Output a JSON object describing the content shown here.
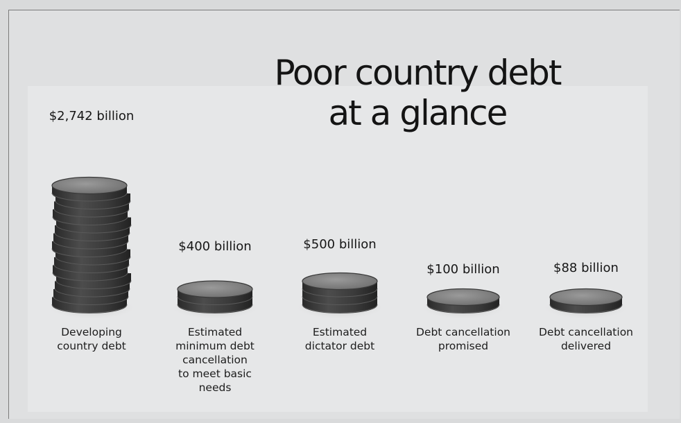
{
  "chart_data": {
    "type": "bar",
    "title": "Poor country debt at a glance",
    "unit": "billion",
    "categories": [
      "Developing country debt",
      "Estimated minimum debt cancellation to meet basic needs",
      "Estimated dictator debt",
      "Debt cancellation promised",
      "Debt cancellation delivered"
    ],
    "category_lines": [
      [
        "Developing",
        "country debt"
      ],
      [
        "Estimated",
        "minimum debt",
        "cancellation",
        "to meet basic",
        "needs"
      ],
      [
        "Estimated",
        "dictator debt"
      ],
      [
        "Debt cancellation",
        "promised"
      ],
      [
        "Debt cancellation",
        "delivered"
      ]
    ],
    "values": [
      2742,
      400,
      500,
      100,
      88
    ],
    "value_labels": [
      "$2,742 billion",
      "$400 billion",
      "$500 billion",
      "$100 billion",
      "$88 billion"
    ],
    "coins_shown": [
      15,
      2,
      3,
      1,
      1
    ],
    "xlabel": "",
    "ylabel": "",
    "grid": false,
    "legend": "none"
  },
  "colors": {
    "background": "#d9dadb",
    "coin_rim": "#3e3e3e",
    "coin_face": "#8a8a8a",
    "text": "#161616"
  }
}
